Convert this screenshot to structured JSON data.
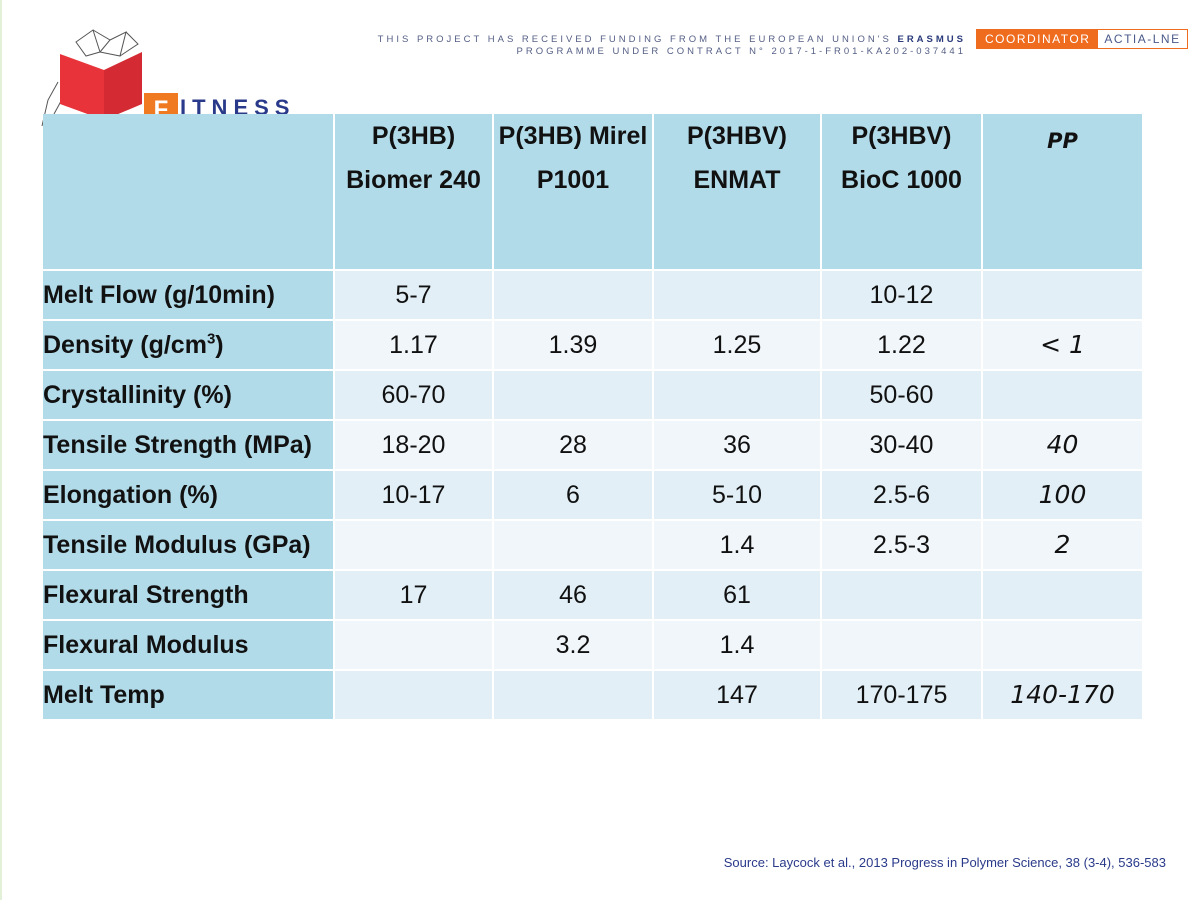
{
  "logo": {
    "letter": "F",
    "word": "ITNESS"
  },
  "funding": {
    "line1_prefix": "THIS PROJECT HAS RECEIVED FUNDING FROM THE EUROPEAN UNION'S",
    "line1_bold": "ERASMUS",
    "line2": "PROGRAMME UNDER CONTRACT N° 2017-1-FR01-KA202-037441"
  },
  "coordinator": {
    "label": "COORDINATOR",
    "name": "ACTIA-LNE"
  },
  "table": {
    "headers": [
      "",
      "P(3HB) Biomer 240",
      "P(3HB) Mirel P1001",
      "P(3HBV) ENMAT",
      "P(3HBV) BioC 1000",
      "PP"
    ],
    "rows": [
      {
        "label": "Melt Flow (g/10min)",
        "values": [
          "5-7",
          "",
          "",
          "10-12",
          ""
        ]
      },
      {
        "label": "Density (g/cm",
        "label_sup": "3",
        "label_suffix": ")",
        "values": [
          "1.17",
          "1.39",
          "1.25",
          "1.22",
          "< 1"
        ]
      },
      {
        "label": "Crystallinity (%)",
        "values": [
          "60-70",
          "",
          "",
          "50-60",
          ""
        ]
      },
      {
        "label": "Tensile Strength (MPa)",
        "values": [
          "18-20",
          "28",
          "36",
          "30-40",
          "40"
        ]
      },
      {
        "label": "Elongation (%)",
        "values": [
          "10-17",
          "6",
          "5-10",
          "2.5-6",
          "100"
        ]
      },
      {
        "label": "Tensile Modulus (GPa)",
        "values": [
          "",
          "",
          "1.4",
          "2.5-3",
          "2"
        ]
      },
      {
        "label": "Flexural Strength",
        "values": [
          "17",
          "46",
          "61",
          "",
          ""
        ]
      },
      {
        "label": "Flexural Modulus",
        "values": [
          "",
          "3.2",
          "1.4",
          "",
          ""
        ]
      },
      {
        "label": "Melt Temp",
        "values": [
          "",
          "",
          "147",
          "170-175",
          "140-170"
        ]
      }
    ]
  },
  "source": "Source: Laycock et al., 2013 Progress in Polymer Science, 38 (3-4), 536-583",
  "colors": {
    "header_bg": "#b2dbea",
    "row_a": "#e2eff6",
    "row_b": "#f1f6fa",
    "accent": "#ef6b1e",
    "brand": "#2a3a8a"
  }
}
